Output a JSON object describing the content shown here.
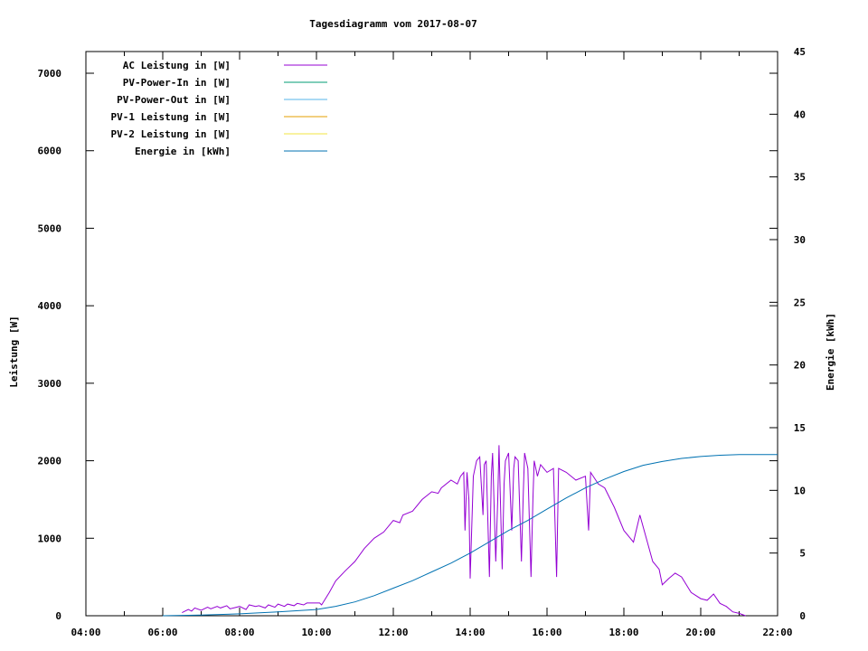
{
  "chart_data": {
    "type": "line",
    "title": "Tagesdiagramm vom 2017-08-07",
    "xlabel": "",
    "ylabel": "Leistung [W]",
    "y2label": "Energie [kWh]",
    "xlim": [
      "04:00",
      "22:00"
    ],
    "xticks": [
      "04:00",
      "06:00",
      "08:00",
      "10:00",
      "12:00",
      "14:00",
      "16:00",
      "18:00",
      "20:00",
      "22:00"
    ],
    "ylim": [
      0,
      7280
    ],
    "yticks": [
      0,
      1000,
      2000,
      3000,
      4000,
      5000,
      6000,
      7000
    ],
    "y2lim": [
      0,
      45
    ],
    "y2ticks": [
      0,
      5,
      10,
      15,
      20,
      25,
      30,
      35,
      40,
      45
    ],
    "grid": false,
    "legend_position": "top-left",
    "legend": [
      {
        "name": "AC Leistung in [W]",
        "color": "#9400d3"
      },
      {
        "name": "PV-Power-In in [W]",
        "color": "#009e73"
      },
      {
        "name": "PV-Power-Out in [W]",
        "color": "#56b4e9"
      },
      {
        "name": "PV-1 Leistung in [W]",
        "color": "#e69f00"
      },
      {
        "name": "PV-2 Leistung in [W]",
        "color": "#f0e442"
      },
      {
        "name": "Energie in [kWh]",
        "color": "#0072b2"
      }
    ],
    "series": [
      {
        "name": "AC Leistung in [W]",
        "axis": "y",
        "color": "#9400d3",
        "x": [
          "06:30",
          "06:40",
          "06:45",
          "06:50",
          "07:00",
          "07:10",
          "07:15",
          "07:25",
          "07:30",
          "07:40",
          "07:45",
          "07:55",
          "08:00",
          "08:10",
          "08:15",
          "08:25",
          "08:30",
          "08:40",
          "08:45",
          "08:55",
          "09:00",
          "09:10",
          "09:15",
          "09:25",
          "09:30",
          "09:40",
          "09:45",
          "10:05",
          "10:08",
          "10:20",
          "10:30",
          "10:45",
          "11:00",
          "11:15",
          "11:30",
          "11:45",
          "12:00",
          "12:10",
          "12:15",
          "12:30",
          "12:45",
          "13:00",
          "13:10",
          "13:15",
          "13:30",
          "13:40",
          "13:45",
          "13:50",
          "13:52",
          "13:55",
          "13:58",
          "14:00",
          "14:05",
          "14:10",
          "14:15",
          "14:20",
          "14:22",
          "14:25",
          "14:30",
          "14:33",
          "14:35",
          "14:40",
          "14:43",
          "14:45",
          "14:50",
          "14:53",
          "14:55",
          "15:00",
          "15:05",
          "15:08",
          "15:10",
          "15:15",
          "15:20",
          "15:23",
          "15:25",
          "15:30",
          "15:35",
          "15:38",
          "15:40",
          "15:45",
          "15:50",
          "16:00",
          "16:10",
          "16:15",
          "16:18",
          "16:30",
          "16:45",
          "17:00",
          "17:05",
          "17:08",
          "17:20",
          "17:30",
          "17:45",
          "18:00",
          "18:10",
          "18:15",
          "18:25",
          "18:35",
          "18:45",
          "18:55",
          "19:00",
          "19:10",
          "19:20",
          "19:30",
          "19:45",
          "20:00",
          "20:10",
          "20:20",
          "20:30",
          "20:40",
          "20:50",
          "21:00",
          "21:10"
        ],
        "values": [
          40,
          80,
          60,
          100,
          70,
          110,
          90,
          120,
          100,
          130,
          90,
          110,
          120,
          80,
          140,
          120,
          130,
          100,
          140,
          110,
          150,
          120,
          150,
          130,
          160,
          140,
          165,
          165,
          140,
          300,
          450,
          580,
          700,
          870,
          1000,
          1080,
          1230,
          1200,
          1300,
          1350,
          1500,
          1600,
          1580,
          1650,
          1750,
          1700,
          1800,
          1850,
          1100,
          1850,
          1500,
          480,
          1800,
          2000,
          2050,
          1300,
          1950,
          2000,
          500,
          1800,
          2100,
          700,
          1500,
          2200,
          600,
          1700,
          2000,
          2100,
          1100,
          1900,
          2050,
          2000,
          700,
          1600,
          2100,
          1900,
          500,
          1500,
          2000,
          1800,
          1950,
          1850,
          1900,
          500,
          1900,
          1850,
          1750,
          1800,
          1100,
          1850,
          1700,
          1650,
          1400,
          1100,
          1000,
          950,
          1300,
          1000,
          700,
          600,
          400,
          480,
          550,
          500,
          300,
          220,
          200,
          280,
          160,
          120,
          50,
          30,
          0
        ]
      },
      {
        "name": "Energie in [kWh]",
        "axis": "y2",
        "color": "#0072b2",
        "x": [
          "06:00",
          "07:00",
          "08:00",
          "09:00",
          "10:00",
          "10:30",
          "11:00",
          "11:30",
          "12:00",
          "12:30",
          "13:00",
          "13:30",
          "14:00",
          "14:30",
          "15:00",
          "15:30",
          "16:00",
          "16:30",
          "17:00",
          "17:30",
          "18:00",
          "18:30",
          "19:00",
          "19:30",
          "20:00",
          "20:30",
          "21:00",
          "21:30",
          "22:00"
        ],
        "values": [
          0,
          0.05,
          0.15,
          0.3,
          0.5,
          0.75,
          1.1,
          1.6,
          2.2,
          2.8,
          3.5,
          4.2,
          5.0,
          5.9,
          6.8,
          7.6,
          8.5,
          9.4,
          10.2,
          10.9,
          11.5,
          12.0,
          12.3,
          12.55,
          12.7,
          12.8,
          12.85,
          12.85,
          12.85
        ]
      }
    ]
  }
}
